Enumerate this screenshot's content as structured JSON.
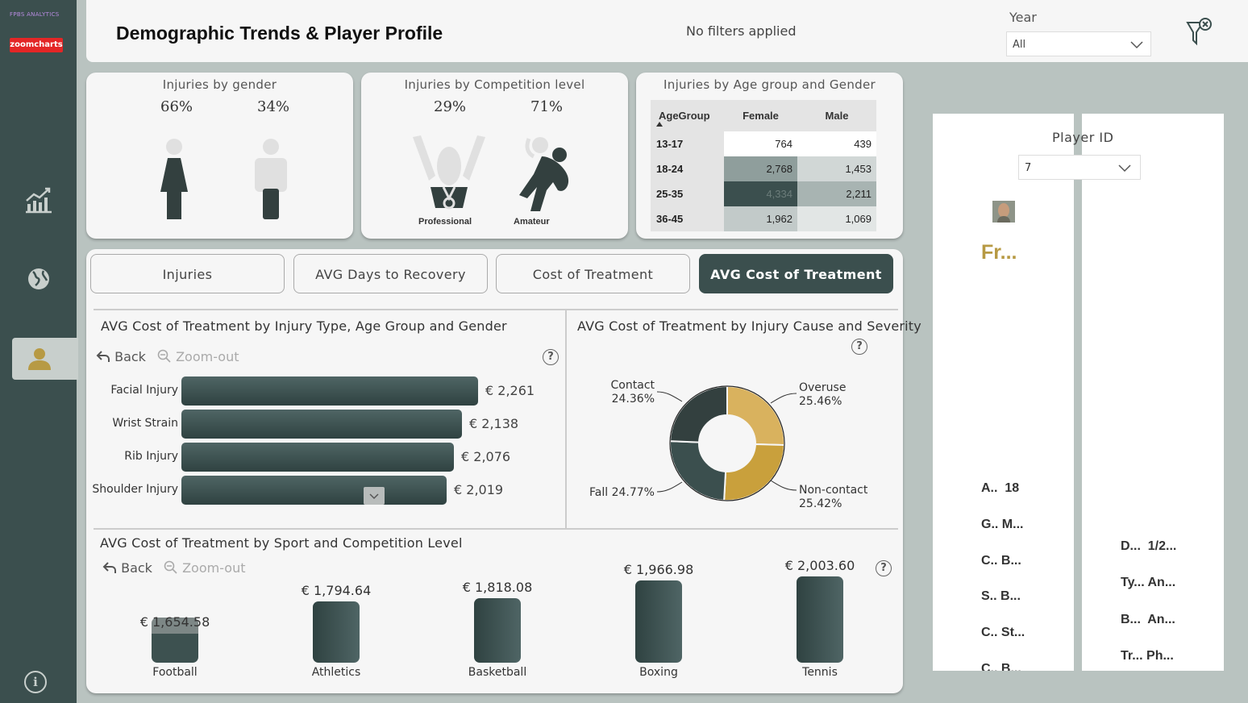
{
  "nav": {
    "brand_text": "FPBS ANALYTICS",
    "zoomcharts_logo": "zoomcharts"
  },
  "header": {
    "title": "Demographic Trends  & Player Profile",
    "filters_status": "No filters applied",
    "year_label": "Year",
    "year_value": "All"
  },
  "gender_card": {
    "title": "Injuries by gender",
    "female_pct": "66%",
    "male_pct": "34%"
  },
  "competition_card": {
    "title": "Injuries by Competition level",
    "professional_pct": "29%",
    "amateur_pct": "71%",
    "professional_label": "Professional",
    "amateur_label": "Amateur"
  },
  "age_card": {
    "title": "Injuries by Age group and Gender",
    "headers": [
      "AgeGroup",
      "Female",
      "Male"
    ],
    "rows": [
      {
        "group": "13-17",
        "female": "764",
        "male": "439"
      },
      {
        "group": "18-24",
        "female": "2,768",
        "male": "1,453"
      },
      {
        "group": "25-35",
        "female": "4,334",
        "male": "2,211"
      },
      {
        "group": "36-45",
        "female": "1,962",
        "male": "1,069"
      }
    ]
  },
  "tabs": [
    "Injuries",
    "AVG Days to Recovery",
    "Cost of Treatment",
    "AVG Cost of Treatment"
  ],
  "active_tab": "AVG Cost of Treatment",
  "toolbar": {
    "back": "Back",
    "zoom_out": "Zoom-out",
    "help": "?"
  },
  "chart_data": [
    {
      "type": "bar",
      "title": "AVG Cost of Treatment by Injury Type, Age Group and Gender",
      "categories": [
        "Facial Injury",
        "Wrist Strain",
        "Rib Injury",
        "Shoulder Injury"
      ],
      "values": [
        2261,
        2138,
        2076,
        2019
      ],
      "value_labels": [
        "€ 2,261",
        "€ 2,138",
        "€ 2,076",
        "€ 2,019"
      ],
      "orientation": "horizontal"
    },
    {
      "type": "pie",
      "title": "AVG Cost of Treatment by Injury Cause and Severity",
      "categories": [
        "Overuse",
        "Non-contact",
        "Fall",
        "Contact"
      ],
      "values": [
        25.46,
        25.42,
        24.77,
        24.36
      ],
      "value_labels": [
        "25.46%",
        "25.42%",
        "24.77%",
        "24.36%"
      ],
      "colors": [
        "#d9b25e",
        "#c9a03c",
        "#3b4f4e",
        "#33403f"
      ]
    },
    {
      "type": "bar",
      "title": "AVG Cost of Treatment by Sport and Competition Level",
      "categories": [
        "Football",
        "Athletics",
        "Basketball",
        "Boxing",
        "Tennis"
      ],
      "values": [
        1654.58,
        1794.64,
        1818.08,
        1966.98,
        2003.6
      ],
      "value_labels": [
        "€ 1,654.58",
        "€ 1,794.64",
        "€ 1,818.08",
        "€ 1,966.98",
        "€ 2,003.60"
      ]
    }
  ],
  "player": {
    "id_label": "Player ID",
    "id_value": "7",
    "name": "Fr...",
    "fields_left": [
      {
        "k": "A..",
        "v": "18"
      },
      {
        "k": "G..",
        "v": "M..."
      },
      {
        "k": "C..",
        "v": "B..."
      },
      {
        "k": "S..",
        "v": "B..."
      },
      {
        "k": "C..",
        "v": "St..."
      },
      {
        "k": "C..",
        "v": "B..."
      }
    ],
    "fields_right": [
      {
        "k": "D...",
        "v": "1/2..."
      },
      {
        "k": "Ty...",
        "v": "An..."
      },
      {
        "k": "B...",
        "v": "An..."
      },
      {
        "k": "Tr...",
        "v": "Ph..."
      }
    ]
  }
}
